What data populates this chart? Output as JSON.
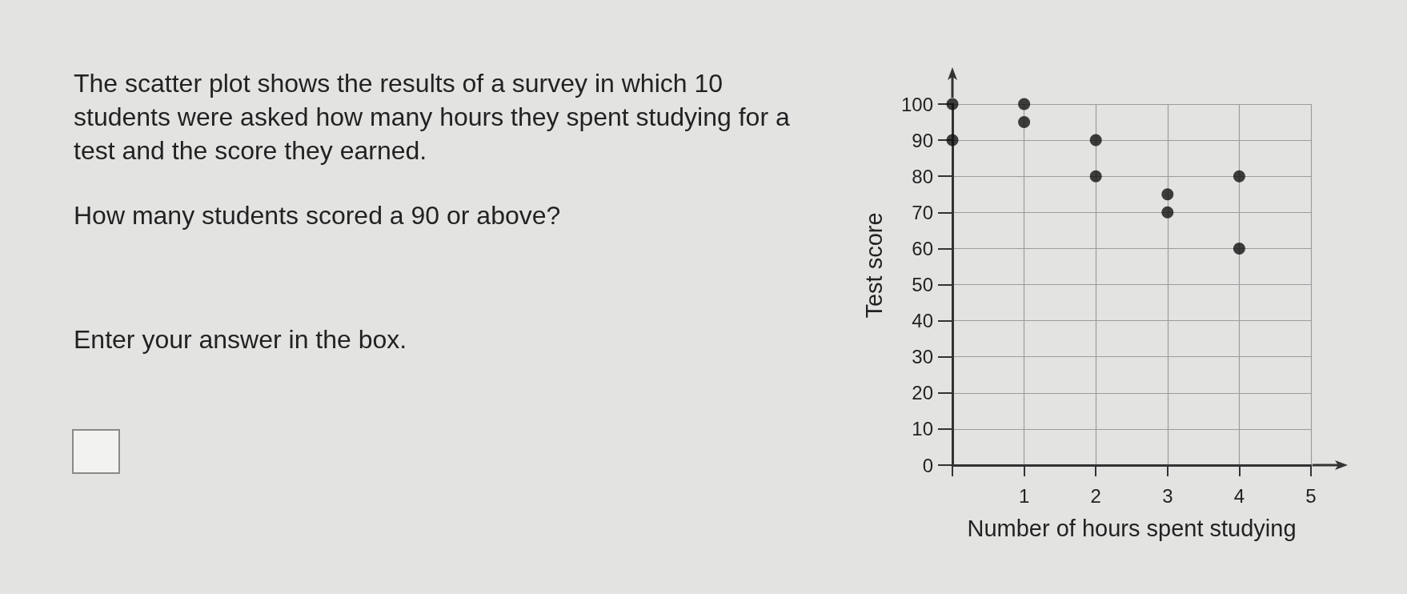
{
  "chart_data": {
    "type": "scatter",
    "annotations": [
      "The scatter plot shows the results of a survey in which 10 students were asked how many hours they spent studying for a test and the score they earned.",
      "How many students scored a 90 or above?",
      "Enter your answer in the box."
    ],
    "xlabel": "Number of hours spent studying",
    "ylabel": "Test score",
    "x": [
      0,
      0,
      1,
      1,
      2,
      2,
      3,
      3,
      4,
      4
    ],
    "values": [
      100,
      90,
      100,
      95,
      90,
      80,
      75,
      70,
      80,
      60
    ],
    "color": "#111111",
    "xlim": [
      0,
      5
    ],
    "xticks": [
      {
        "value": 0,
        "label": null
      },
      1,
      2,
      3,
      4,
      5
    ],
    "ylim": [
      0,
      100
    ],
    "yticks": [
      0,
      10,
      20,
      30,
      40,
      50,
      60,
      70,
      80,
      90,
      100
    ],
    "grid": true,
    "marker": "circle"
  }
}
